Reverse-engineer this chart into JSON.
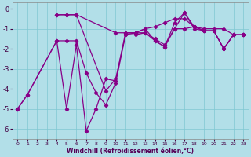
{
  "xlabel": "Windchill (Refroidissement éolien,°C)",
  "xlim": [
    -0.5,
    23.5
  ],
  "ylim": [
    -6.5,
    0.3
  ],
  "yticks": [
    0,
    -1,
    -2,
    -3,
    -4,
    -5,
    -6
  ],
  "xtick_labels": [
    "0",
    "1",
    "2",
    "3",
    "4",
    "5",
    "6",
    "7",
    "8",
    "9",
    "10",
    "11",
    "12",
    "13",
    "14",
    "15",
    "16",
    "17",
    "18",
    "19",
    "20",
    "21",
    "22",
    "23"
  ],
  "bg_color": "#b2dfe8",
  "grid_color": "#7fc8d2",
  "line_color": "#880088",
  "series": [
    {
      "x": [
        4,
        5,
        6,
        10,
        11,
        12,
        13,
        14,
        15,
        16,
        17,
        18,
        19,
        20,
        21,
        22,
        23
      ],
      "y": [
        -0.3,
        -0.3,
        -0.3,
        -1.2,
        -1.2,
        -1.2,
        -1.0,
        -0.9,
        -0.7,
        -0.5,
        -0.5,
        -0.9,
        -1.0,
        -1.0,
        -1.0,
        -1.3,
        -1.3
      ]
    },
    {
      "x": [
        4,
        5,
        6,
        9,
        10,
        11,
        12,
        13,
        14,
        15,
        16,
        17,
        18,
        19,
        20,
        21,
        22,
        23
      ],
      "y": [
        -0.3,
        -0.3,
        -0.3,
        -4.1,
        -3.5,
        -1.3,
        -1.3,
        -1.2,
        -1.5,
        -1.8,
        -1.0,
        -1.0,
        -0.9,
        -1.1,
        -1.1,
        -2.0,
        -1.3,
        -1.3
      ]
    },
    {
      "x": [
        0,
        1,
        4,
        5,
        6,
        7,
        8,
        9,
        10,
        11,
        12,
        13,
        14,
        15,
        16,
        17,
        18,
        19,
        20,
        21,
        22,
        23
      ],
      "y": [
        -5.0,
        -4.3,
        -1.6,
        -1.6,
        -1.6,
        -3.2,
        -4.2,
        -4.8,
        -3.7,
        -1.3,
        -1.2,
        -1.2,
        -1.6,
        -1.9,
        -1.0,
        -0.2,
        -1.0,
        -1.1,
        -1.1,
        -2.0,
        -1.3,
        -1.3
      ]
    },
    {
      "x": [
        0,
        1,
        4,
        5,
        6,
        7,
        8,
        9,
        10,
        11,
        12,
        13,
        14,
        15,
        16,
        17,
        18,
        19,
        20,
        21,
        22,
        23
      ],
      "y": [
        -5.0,
        -4.3,
        -1.6,
        -5.0,
        -1.8,
        -6.1,
        -5.0,
        -3.5,
        -3.6,
        -1.2,
        -1.2,
        -1.0,
        -1.6,
        -1.9,
        -0.7,
        -0.2,
        -0.9,
        -1.1,
        -1.1,
        -2.0,
        -1.3,
        -1.3
      ]
    }
  ]
}
